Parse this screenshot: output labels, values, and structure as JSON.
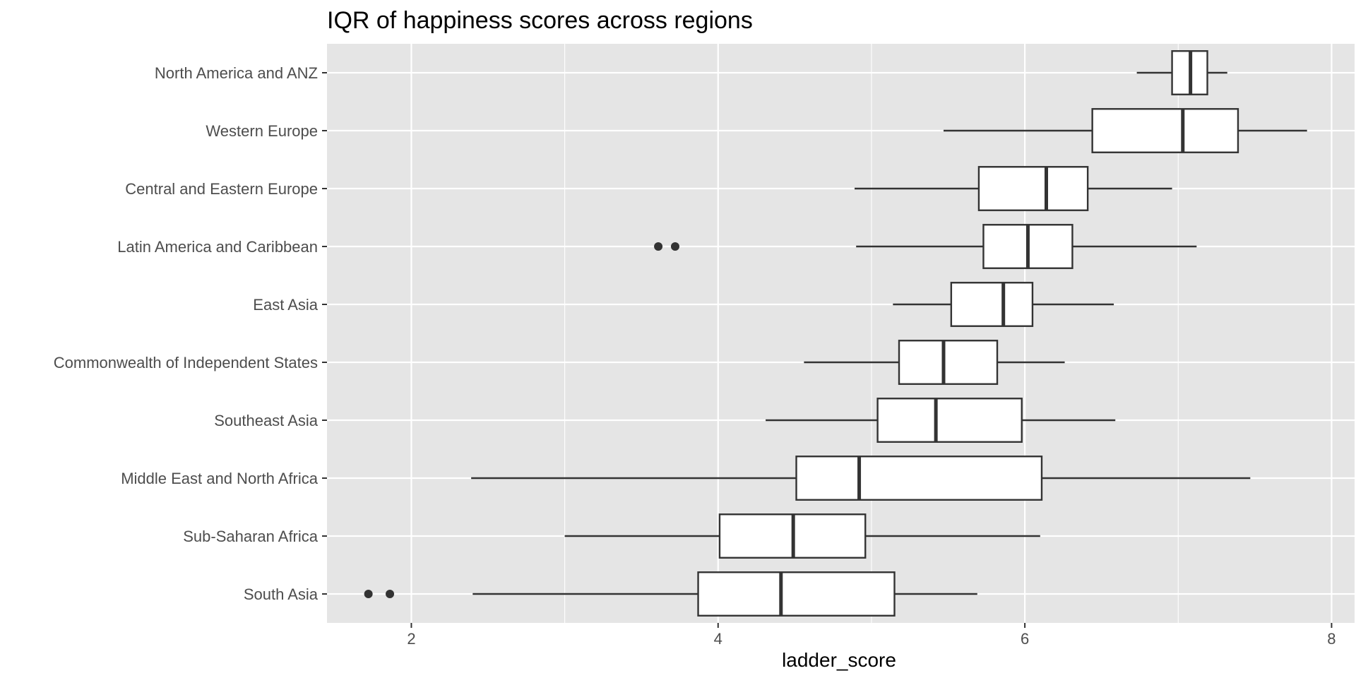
{
  "chart_data": {
    "type": "boxplot",
    "title": "IQR of happiness scores across regions",
    "xlabel": "ladder_score",
    "ylabel": "",
    "xlim": [
      1.45,
      8.15
    ],
    "x_ticks": [
      2,
      4,
      6,
      8
    ],
    "grid": true,
    "orientation": "horizontal",
    "colors": {
      "panel": "#e5e5e5",
      "gridline": "#ffffff",
      "box_fill": "#ffffff",
      "box_stroke": "#333333",
      "outlier": "#333333"
    },
    "categories": [
      "North America and ANZ",
      "Western Europe",
      "Central and Eastern Europe",
      "Latin America and Caribbean",
      "East Asia",
      "Commonwealth of Independent States",
      "Southeast Asia",
      "Middle East and North Africa",
      "Sub-Saharan Africa",
      "South Asia"
    ],
    "boxes": [
      {
        "min": 6.73,
        "q1": 6.96,
        "median": 7.08,
        "q3": 7.19,
        "max": 7.32,
        "outliers": []
      },
      {
        "min": 5.47,
        "q1": 6.44,
        "median": 7.03,
        "q3": 7.39,
        "max": 7.84,
        "outliers": []
      },
      {
        "min": 4.89,
        "q1": 5.7,
        "median": 6.14,
        "q3": 6.41,
        "max": 6.96,
        "outliers": []
      },
      {
        "min": 4.9,
        "q1": 5.73,
        "median": 6.02,
        "q3": 6.31,
        "max": 7.12,
        "outliers": [
          3.61,
          3.72
        ]
      },
      {
        "min": 5.14,
        "q1": 5.52,
        "median": 5.86,
        "q3": 6.05,
        "max": 6.58,
        "outliers": []
      },
      {
        "min": 4.56,
        "q1": 5.18,
        "median": 5.47,
        "q3": 5.82,
        "max": 6.26,
        "outliers": []
      },
      {
        "min": 4.31,
        "q1": 5.04,
        "median": 5.42,
        "q3": 5.98,
        "max": 6.59,
        "outliers": []
      },
      {
        "min": 2.39,
        "q1": 4.51,
        "median": 4.92,
        "q3": 6.11,
        "max": 7.47,
        "outliers": []
      },
      {
        "min": 3.0,
        "q1": 4.01,
        "median": 4.49,
        "q3": 4.96,
        "max": 6.1,
        "outliers": []
      },
      {
        "min": 2.4,
        "q1": 3.87,
        "median": 4.41,
        "q3": 5.15,
        "max": 5.69,
        "outliers": [
          1.72,
          1.86
        ]
      }
    ]
  }
}
